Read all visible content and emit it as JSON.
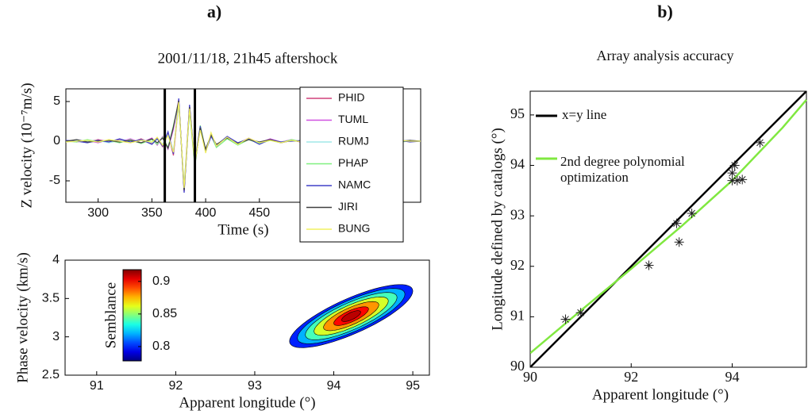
{
  "chart_data": [
    {
      "type": "line",
      "label": "a)",
      "title": "2001/11/18, 21h45 aftershock",
      "xlabel": "Time (s)",
      "ylabel": "Z velocity (10⁻⁷m/s)",
      "xlim": [
        270,
        600
      ],
      "xticks": [
        300,
        350,
        400,
        450
      ],
      "ylim": [
        -7.7,
        6.6
      ],
      "yticks": [
        -5,
        0,
        5
      ],
      "vlines": [
        362,
        390
      ],
      "x": [
        270,
        280,
        290,
        300,
        310,
        320,
        330,
        340,
        350,
        355,
        360,
        365,
        370,
        375,
        380,
        385,
        390,
        395,
        400,
        405,
        410,
        420,
        430,
        440,
        450,
        460,
        470,
        480,
        490,
        500,
        510,
        520,
        530,
        540,
        550,
        560,
        570,
        580,
        590,
        600
      ],
      "series": [
        {
          "name": "PHID",
          "color": "#d0407a",
          "values": [
            0,
            0.1,
            -0.1,
            0.2,
            -0.1,
            0.2,
            -0.2,
            0.3,
            -0.3,
            0.4,
            -0.7,
            1,
            -1.8,
            4.8,
            -5.8,
            4.5,
            -3,
            1.8,
            -1.2,
            0.9,
            -0.6,
            0.5,
            -0.4,
            0.3,
            -0.3,
            0.2,
            -0.2,
            0.1,
            -0.1,
            0.1,
            -0.1,
            0.1,
            0,
            -0.1,
            0.1,
            0,
            -0.1,
            0.1,
            0,
            0
          ]
        },
        {
          "name": "TUML",
          "color": "#d050e0",
          "values": [
            0.1,
            -0.1,
            0.1,
            -0.2,
            0.2,
            -0.1,
            0.3,
            -0.2,
            0.4,
            -0.5,
            0.6,
            -1,
            1.5,
            5.3,
            -6.4,
            4.2,
            -2.8,
            1.6,
            -1.4,
            1,
            -0.7,
            0.6,
            -0.3,
            0.4,
            -0.2,
            0.3,
            -0.1,
            0.2,
            -0.2,
            0.1,
            0,
            -0.1,
            0.1,
            0,
            -0.1,
            0.1,
            0,
            -0.1,
            0.1,
            0
          ]
        },
        {
          "name": "RUMJ",
          "color": "#a0e8e8",
          "values": [
            -0.1,
            0.1,
            0,
            0.1,
            -0.2,
            0.1,
            -0.1,
            0.2,
            -0.2,
            0.3,
            -0.4,
            0.8,
            -1.2,
            4.5,
            -5.5,
            4,
            -2.5,
            1.5,
            -1,
            0.8,
            -0.5,
            0.4,
            -0.3,
            0.2,
            -0.2,
            0.1,
            -0.1,
            0.1,
            0,
            -0.1,
            0.1,
            0,
            -0.1,
            0.1,
            0,
            0.1,
            -0.1,
            0,
            0.1,
            0
          ]
        },
        {
          "name": "PHAP",
          "color": "#80f080",
          "values": [
            0,
            -0.1,
            0.2,
            -0.1,
            0.1,
            -0.2,
            0.2,
            -0.3,
            0.2,
            -0.4,
            0.5,
            -0.8,
            2,
            5,
            -6,
            3.8,
            -3.2,
            2,
            -1.1,
            0.7,
            -0.8,
            0.3,
            -0.5,
            0.2,
            -0.3,
            0.1,
            -0.2,
            0.2,
            -0.1,
            0,
            0.1,
            -0.1,
            0,
            0.1,
            -0.1,
            0,
            0.1,
            -0.1,
            0,
            0
          ]
        },
        {
          "name": "NAMC",
          "color": "#4040c8",
          "values": [
            0.1,
            0,
            -0.2,
            0.1,
            -0.1,
            0.3,
            -0.1,
            0.2,
            -0.4,
            0.3,
            -0.6,
            1.2,
            -1.6,
            5.4,
            -6.5,
            4.6,
            -2.6,
            1.9,
            -1.3,
            0.6,
            -0.5,
            0.6,
            -0.2,
            0.3,
            -0.4,
            0.2,
            -0.1,
            0,
            0.1,
            -0.1,
            0.1,
            0,
            -0.1,
            0,
            0.1,
            -0.1,
            0,
            0.1,
            -0.1,
            0
          ]
        },
        {
          "name": "JIRI",
          "color": "#404040",
          "values": [
            0,
            0.2,
            -0.1,
            0,
            0.1,
            -0.1,
            0.1,
            -0.2,
            0.3,
            -0.2,
            0.4,
            -0.9,
            1.8,
            5.1,
            -6.2,
            4.3,
            -2.9,
            1.7,
            -1,
            0.8,
            -0.4,
            0.4,
            -0.3,
            0.2,
            -0.1,
            0.2,
            -0.2,
            0.1,
            -0.1,
            0.1,
            0,
            0.1,
            -0.1,
            0,
            0.1,
            0,
            -0.1,
            0,
            0.1,
            0
          ]
        },
        {
          "name": "BUNG",
          "color": "#f0f060",
          "values": [
            -0.1,
            0,
            0.1,
            -0.1,
            0.2,
            0,
            -0.2,
            0.1,
            -0.1,
            0.5,
            -0.5,
            0.7,
            -1.4,
            4.9,
            -5.9,
            4.1,
            -2.7,
            1.4,
            -1.5,
            1.1,
            -0.6,
            0.5,
            -0.4,
            0.4,
            -0.2,
            0.1,
            -0.2,
            0.1,
            -0.1,
            0.1,
            -0.1,
            0.1,
            0,
            -0.1,
            0,
            0.1,
            -0.1,
            0.1,
            0,
            0
          ]
        }
      ]
    },
    {
      "type": "contour",
      "xlabel": "Apparent longitude (°)",
      "ylabel": "Phase velocity (km/s)",
      "xlim": [
        90.6,
        95.21
      ],
      "xticks": [
        91,
        92,
        93,
        94,
        95
      ],
      "ylim": [
        2.5,
        4
      ],
      "yticks": [
        2.5,
        3,
        3.5,
        4
      ],
      "colorbar_label": "Semblance",
      "clim": [
        0.778,
        0.918
      ],
      "cticks": [
        0.8,
        0.85,
        0.9
      ],
      "center_x": 94.22,
      "center_y": 3.27,
      "slope": 0.42,
      "contours": [
        {
          "level": 0.8,
          "x_radius": 0.78,
          "y_radius": 0.25
        },
        {
          "level": 0.82,
          "x_radius": 0.68,
          "y_radius": 0.22
        },
        {
          "level": 0.84,
          "x_radius": 0.58,
          "y_radius": 0.19
        },
        {
          "level": 0.86,
          "x_radius": 0.47,
          "y_radius": 0.155
        },
        {
          "level": 0.88,
          "x_radius": 0.35,
          "y_radius": 0.12
        },
        {
          "level": 0.9,
          "x_radius": 0.22,
          "y_radius": 0.08
        },
        {
          "level": 0.91,
          "x_radius": 0.12,
          "y_radius": 0.05
        }
      ]
    },
    {
      "type": "scatter",
      "label": "b)",
      "title": "Array analysis accuracy",
      "xlabel": "Apparent longitude (°)",
      "ylabel": "Longitude defined by catalogs (°)",
      "xlim": [
        90,
        95.47
      ],
      "xticks": [
        90,
        92,
        94
      ],
      "ylim": [
        90,
        95.47
      ],
      "yticks": [
        90,
        91,
        92,
        93,
        94,
        95
      ],
      "series": [
        {
          "name": "x=y line",
          "color": "#000000",
          "x": [
            90,
            95.47
          ],
          "values": [
            90,
            95.47
          ]
        },
        {
          "name": "2nd degree polynomial optimization",
          "color": "#80e840",
          "x": [
            90,
            91,
            92,
            93,
            94,
            95,
            95.47
          ],
          "values": [
            90.28,
            91.12,
            91.95,
            92.8,
            93.7,
            94.75,
            95.3
          ]
        },
        {
          "color": "#222222",
          "marker": "star",
          "x": [
            90.7,
            91.0,
            92.35,
            92.9,
            92.95,
            93.2,
            94.0,
            94.05,
            94.1,
            94.2,
            94.0,
            94.55
          ],
          "values": [
            90.95,
            91.08,
            92.02,
            92.85,
            92.48,
            93.05,
            93.85,
            94.0,
            93.7,
            93.72,
            93.7,
            94.45
          ]
        }
      ]
    }
  ]
}
